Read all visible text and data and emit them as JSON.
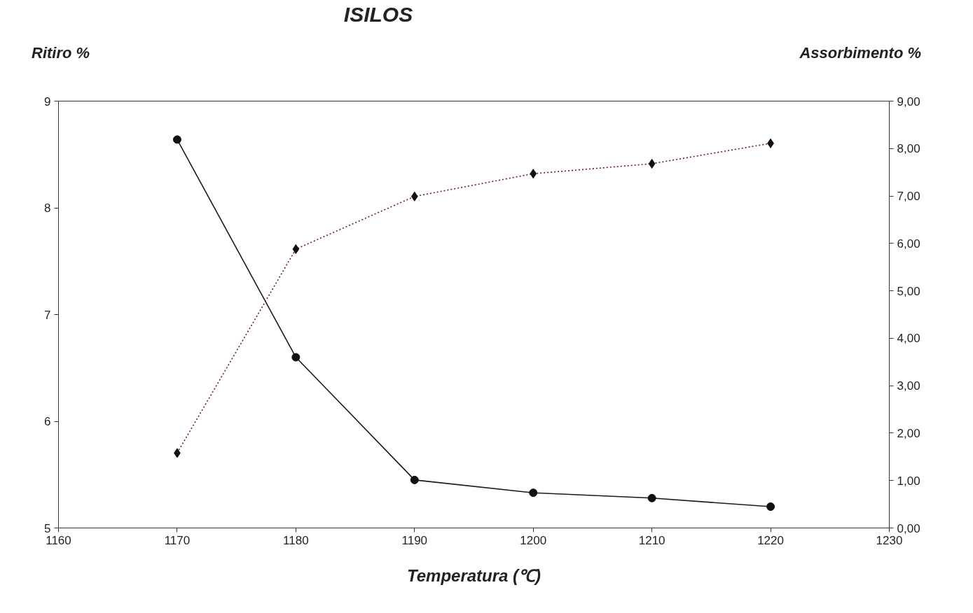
{
  "chart_data": {
    "type": "line",
    "title": "ISILOS",
    "xlabel": "Temperatura (℃)",
    "ylabel": "Ritiro %",
    "y2label": "Assorbimento %",
    "x": [
      1170,
      1180,
      1190,
      1200,
      1210,
      1220
    ],
    "series": [
      {
        "color": "#1a1a1a",
        "values": [
          8.64,
          6.6,
          5.45,
          5.33,
          5.28,
          5.2
        ],
        "marker": "circle",
        "line_style": "solid"
      },
      {
        "color": "#6a1a2a",
        "values": [
          1.58,
          5.88,
          6.99,
          7.47,
          7.68,
          8.11
        ],
        "marker": "diamond",
        "line_style": "dotted",
        "axis": "y2"
      }
    ],
    "xlim": [
      1160,
      1230
    ],
    "xticks": [
      1160,
      1170,
      1180,
      1190,
      1200,
      1210,
      1220,
      1230
    ],
    "ylim": [
      5,
      9
    ],
    "yticks": [
      5,
      6,
      7,
      8,
      9
    ],
    "y2lim": [
      0,
      9
    ],
    "y2ticks": [
      {
        "value": 0,
        "label": "0,00"
      },
      {
        "value": 1,
        "label": "1,00"
      },
      {
        "value": 2,
        "label": "2,00"
      },
      {
        "value": 3,
        "label": "3,00"
      },
      {
        "value": 4,
        "label": "4,00"
      },
      {
        "value": 5,
        "label": "5,00"
      },
      {
        "value": 6,
        "label": "6,00"
      },
      {
        "value": 7,
        "label": "7,00"
      },
      {
        "value": 8,
        "label": "8,00"
      },
      {
        "value": 9,
        "label": "9,00"
      }
    ]
  }
}
